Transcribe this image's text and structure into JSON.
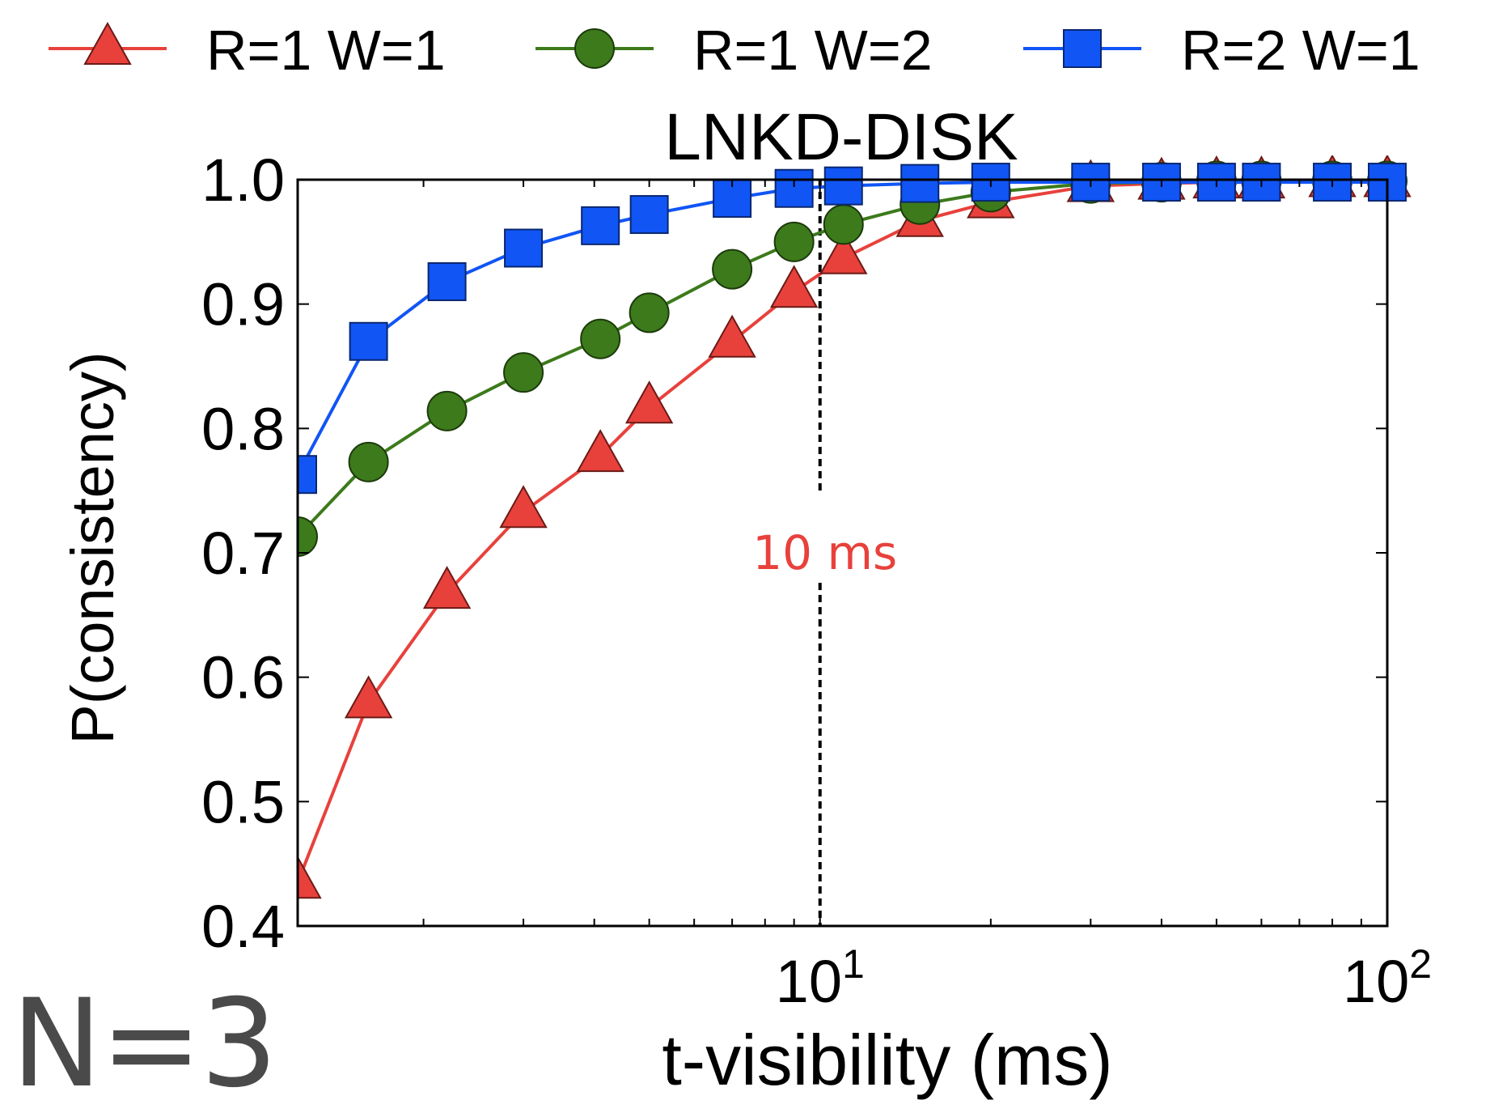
{
  "chart_data": {
    "type": "line",
    "title": "LNKD-DISK",
    "xlabel": "t-visibility (ms)",
    "ylabel": "P(consistency)",
    "xscale": "log",
    "xlim": [
      1.2,
      100
    ],
    "ylim": [
      0.4,
      1.0
    ],
    "yticks": [
      "0.4",
      "0.5",
      "0.6",
      "0.7",
      "0.8",
      "0.9",
      "1.0"
    ],
    "xticks": [
      {
        "value": 10,
        "base": "10",
        "exp": "1"
      },
      {
        "value": 100,
        "base": "10",
        "exp": "2"
      }
    ],
    "grid": false,
    "legend_position": "top",
    "series": [
      {
        "name": "R=1 W=1",
        "color": "#e8413c",
        "marker": "triangle",
        "x": [
          1.2,
          1.6,
          2.2,
          3.0,
          4.1,
          5.0,
          7.0,
          9.0,
          11.0,
          15.0,
          20.0,
          30.0,
          40.0,
          50.0,
          60.0,
          80.0,
          100.0
        ],
        "y": [
          0.435,
          0.58,
          0.668,
          0.733,
          0.778,
          0.817,
          0.87,
          0.91,
          0.937,
          0.967,
          0.982,
          0.995,
          0.997,
          0.998,
          0.998,
          0.999,
          0.999
        ]
      },
      {
        "name": "R=1 W=2",
        "color": "#3c7a1b",
        "marker": "circle",
        "x": [
          1.2,
          1.6,
          2.2,
          3.0,
          4.1,
          5.0,
          7.0,
          9.0,
          11.0,
          15.0,
          20.0,
          30.0,
          40.0,
          50.0,
          60.0,
          80.0,
          100.0
        ],
        "y": [
          0.713,
          0.773,
          0.814,
          0.845,
          0.872,
          0.893,
          0.928,
          0.95,
          0.964,
          0.98,
          0.99,
          0.997,
          0.998,
          0.999,
          0.999,
          0.999,
          0.999
        ]
      },
      {
        "name": "R=2 W=1",
        "color": "#1155f5",
        "marker": "square",
        "x": [
          1.2,
          1.6,
          2.2,
          3.0,
          4.1,
          5.0,
          7.0,
          9.0,
          11.0,
          15.0,
          20.0,
          30.0,
          40.0,
          50.0,
          60.0,
          80.0,
          100.0
        ],
        "y": [
          0.763,
          0.87,
          0.918,
          0.945,
          0.963,
          0.972,
          0.985,
          0.993,
          0.995,
          0.997,
          0.998,
          0.998,
          0.998,
          0.998,
          0.998,
          0.998,
          0.998
        ]
      }
    ],
    "annotations": [
      {
        "text": "10 ms",
        "x": 10,
        "y": 0.7,
        "color": "#e8413c",
        "line": "dashed-vertical"
      }
    ]
  },
  "extra_label": "N=3"
}
